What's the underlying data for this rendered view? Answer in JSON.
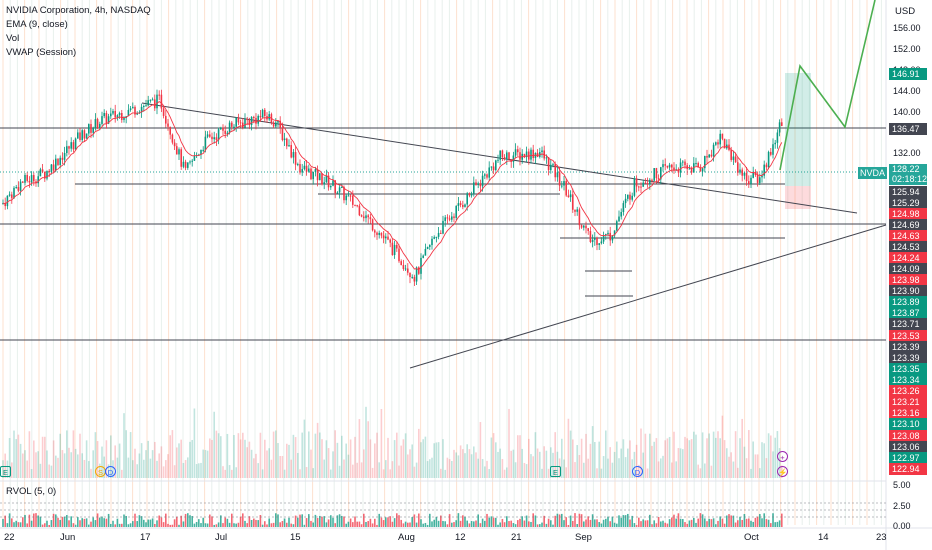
{
  "legend": {
    "symbol": "NVIDIA Corporation, 4h, NASDAQ",
    "ema": "EMA (9, close)",
    "vol": "Vol",
    "vwap": "VWAP (Session)"
  },
  "currency": "USD",
  "price_ticks": [
    "156.00",
    "152.00",
    "148.00",
    "144.00",
    "140.00",
    "132.00"
  ],
  "tags": [
    {
      "label": "146.91",
      "color": "#089981",
      "price": 146.91
    },
    {
      "label": "136.47",
      "color": "#434651",
      "price": 136.47
    },
    {
      "label": "125.94",
      "color": "#434651",
      "price": 125.94
    },
    {
      "label": "125.29",
      "color": "#434651",
      "price": 125.29
    },
    {
      "label": "124.98",
      "color": "#f23645",
      "price": 124.98
    },
    {
      "label": "124.69",
      "color": "#434651",
      "price": 124.69
    },
    {
      "label": "124.63",
      "color": "#f23645",
      "price": 124.63
    },
    {
      "label": "124.53",
      "color": "#434651",
      "price": 124.53
    },
    {
      "label": "124.24",
      "color": "#f23645",
      "price": 124.24
    },
    {
      "label": "124.09",
      "color": "#434651",
      "price": 124.09
    },
    {
      "label": "123.98",
      "color": "#f23645",
      "price": 123.98
    },
    {
      "label": "123.90",
      "color": "#434651",
      "price": 123.9
    },
    {
      "label": "123.89",
      "color": "#089981",
      "price": 123.89
    },
    {
      "label": "123.87",
      "color": "#089981",
      "price": 123.87
    },
    {
      "label": "123.71",
      "color": "#434651",
      "price": 123.71
    },
    {
      "label": "123.53",
      "color": "#f23645",
      "price": 123.53
    },
    {
      "label": "123.39",
      "color": "#434651",
      "price": 123.39
    },
    {
      "label": "123.39",
      "color": "#434651",
      "price": 123.39
    },
    {
      "label": "123.35",
      "color": "#089981",
      "price": 123.35
    },
    {
      "label": "123.34",
      "color": "#089981",
      "price": 123.34
    },
    {
      "label": "123.26",
      "color": "#f23645",
      "price": 123.26
    },
    {
      "label": "123.21",
      "color": "#f23645",
      "price": 123.21
    },
    {
      "label": "123.16",
      "color": "#f23645",
      "price": 123.16
    },
    {
      "label": "123.10",
      "color": "#089981",
      "price": 123.1
    },
    {
      "label": "123.08",
      "color": "#f23645",
      "price": 123.08
    },
    {
      "label": "123.06",
      "color": "#434651",
      "price": 123.06
    },
    {
      "label": "122.97",
      "color": "#089981",
      "price": 122.97
    },
    {
      "label": "122.94",
      "color": "#f23645",
      "price": 122.94
    }
  ],
  "current": {
    "symbol": "NVDA",
    "price": "128.22",
    "countdown": "02:18:12"
  },
  "rvol": {
    "label": "RVOL (5, 0)",
    "ticks": [
      "5.00",
      "2.50",
      "0.00"
    ]
  },
  "date_ticks": [
    "22",
    "Jun",
    "17",
    "Jul",
    "15",
    "Aug",
    "12",
    "21",
    "Sep",
    "Oct",
    "14",
    "23"
  ],
  "colors": {
    "up": "#089981",
    "down": "#f23645",
    "ema": "#f23645",
    "projection": "#4caf50"
  }
}
